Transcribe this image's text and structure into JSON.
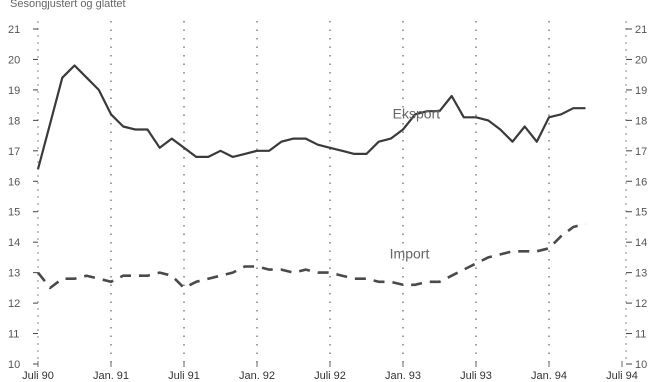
{
  "chart_data": {
    "type": "line",
    "title": "",
    "subtitle": "Sesongjustert og glattet",
    "xlabel": "",
    "ylabel": "",
    "ylim": [
      10,
      21
    ],
    "y_ticks": [
      10,
      11,
      12,
      13,
      14,
      15,
      16,
      17,
      18,
      19,
      20,
      21
    ],
    "categories": [
      "Juli 90",
      "Jan. 91",
      "Juli 91",
      "Jan. 92",
      "Juli 92",
      "Jan. 93",
      "Juli 93",
      "Jan. 94",
      "Juli 94"
    ],
    "x_start": "1990-07",
    "x_end": "1994-07",
    "grid": "vertical dotted lines at x ticks",
    "legend": "inline labels",
    "series": [
      {
        "name": "Eksport",
        "style": "solid",
        "color": "#3a3a3a",
        "labels_pos": "near 1993-05",
        "x": [
          "1990-07",
          "1990-08",
          "1990-09",
          "1990-10",
          "1990-11",
          "1990-12",
          "1991-01",
          "1991-02",
          "1991-03",
          "1991-04",
          "1991-05",
          "1991-06",
          "1991-07",
          "1991-08",
          "1991-09",
          "1991-10",
          "1991-11",
          "1991-12",
          "1992-01",
          "1992-02",
          "1992-03",
          "1992-04",
          "1992-05",
          "1992-06",
          "1992-07",
          "1992-08",
          "1992-09",
          "1992-10",
          "1992-11",
          "1992-12",
          "1993-01",
          "1993-02",
          "1993-03",
          "1993-04",
          "1993-05",
          "1993-06",
          "1993-07",
          "1993-08",
          "1993-09",
          "1993-10",
          "1993-11",
          "1993-12",
          "1994-01",
          "1994-02",
          "1994-03",
          "1994-04"
        ],
        "values": [
          16.4,
          17.9,
          19.4,
          19.8,
          19.4,
          19.0,
          18.2,
          17.8,
          17.7,
          17.7,
          17.1,
          17.4,
          17.1,
          16.8,
          16.8,
          17.0,
          16.8,
          16.9,
          17.0,
          17.0,
          17.3,
          17.4,
          17.4,
          17.2,
          17.1,
          17.0,
          16.9,
          16.9,
          17.3,
          17.4,
          17.7,
          18.2,
          18.3,
          18.3,
          18.8,
          18.1,
          18.1,
          18.0,
          17.7,
          17.3,
          17.8,
          17.3,
          18.1,
          18.2,
          18.4,
          18.4
        ]
      },
      {
        "name": "Import",
        "style": "dashed",
        "color": "#4a4a4a",
        "x": [
          "1990-07",
          "1990-08",
          "1990-09",
          "1990-10",
          "1990-11",
          "1990-12",
          "1991-01",
          "1991-02",
          "1991-03",
          "1991-04",
          "1991-05",
          "1991-06",
          "1991-07",
          "1991-08",
          "1991-09",
          "1991-10",
          "1991-11",
          "1991-12",
          "1992-01",
          "1992-02",
          "1992-03",
          "1992-04",
          "1992-05",
          "1992-06",
          "1992-07",
          "1992-08",
          "1992-09",
          "1992-10",
          "1992-11",
          "1992-12",
          "1993-01",
          "1993-02",
          "1993-03",
          "1993-04",
          "1993-05",
          "1993-06",
          "1993-07",
          "1993-08",
          "1993-09",
          "1993-10",
          "1993-11",
          "1993-12",
          "1994-01",
          "1994-02",
          "1994-03",
          "1994-04"
        ],
        "values": [
          13.0,
          12.5,
          12.8,
          12.8,
          12.9,
          12.8,
          12.7,
          12.9,
          12.9,
          12.9,
          13.0,
          12.9,
          12.5,
          12.7,
          12.8,
          12.9,
          13.0,
          13.2,
          13.2,
          13.1,
          13.1,
          13.0,
          13.1,
          13.0,
          13.0,
          12.9,
          12.8,
          12.8,
          12.7,
          12.7,
          12.6,
          12.6,
          12.7,
          12.7,
          12.9,
          13.1,
          13.3,
          13.5,
          13.6,
          13.7,
          13.7,
          13.7,
          13.8,
          14.2,
          14.5,
          14.6
        ]
      }
    ]
  }
}
